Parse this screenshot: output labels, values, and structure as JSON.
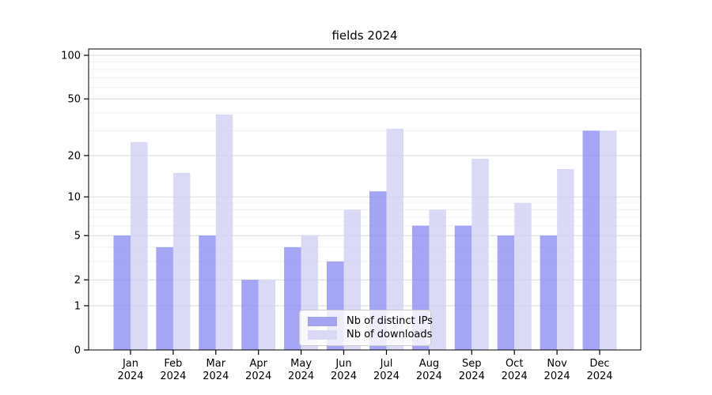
{
  "title": "fields 2024",
  "legend": {
    "items": [
      {
        "label": "Nb of distinct IPs",
        "color": "#a3a3f2"
      },
      {
        "label": "Nb of downloads",
        "color": "#dadaf7"
      }
    ]
  },
  "chart_data": {
    "type": "bar",
    "title": "fields 2024",
    "xlabel": "",
    "ylabel": "",
    "yscale": "log1p",
    "ylim": [
      0,
      100
    ],
    "grid": true,
    "legend_position": "bottom-center",
    "categories": [
      "Jan 2024",
      "Feb 2024",
      "Mar 2024",
      "Apr 2024",
      "May 2024",
      "Jun 2024",
      "Jul 2024",
      "Aug 2024",
      "Sep 2024",
      "Oct 2024",
      "Nov 2024",
      "Dec 2024"
    ],
    "series": [
      {
        "name": "Nb of distinct IPs",
        "color": "#a3a3f2",
        "fill": "rgba(143,143,242,0.8)",
        "values": [
          5,
          4,
          5,
          2,
          4,
          3,
          11,
          6,
          6,
          5,
          5,
          30
        ]
      },
      {
        "name": "Nb of downloads",
        "color": "#dadaf7",
        "fill": "rgba(209,209,244,0.8)",
        "values": [
          25,
          15,
          39,
          2,
          5,
          8,
          31,
          8,
          19,
          9,
          16,
          30
        ]
      }
    ],
    "yticks": [
      0,
      1,
      2,
      5,
      10,
      20,
      50,
      100
    ],
    "minor_yticks": [
      3,
      4,
      6,
      7,
      8,
      9,
      30,
      40,
      60,
      70,
      80,
      90
    ],
    "colors": {
      "major_grid": "#d9d9d9",
      "minor_grid": "#f0f0f0",
      "axis": "#000000"
    }
  }
}
